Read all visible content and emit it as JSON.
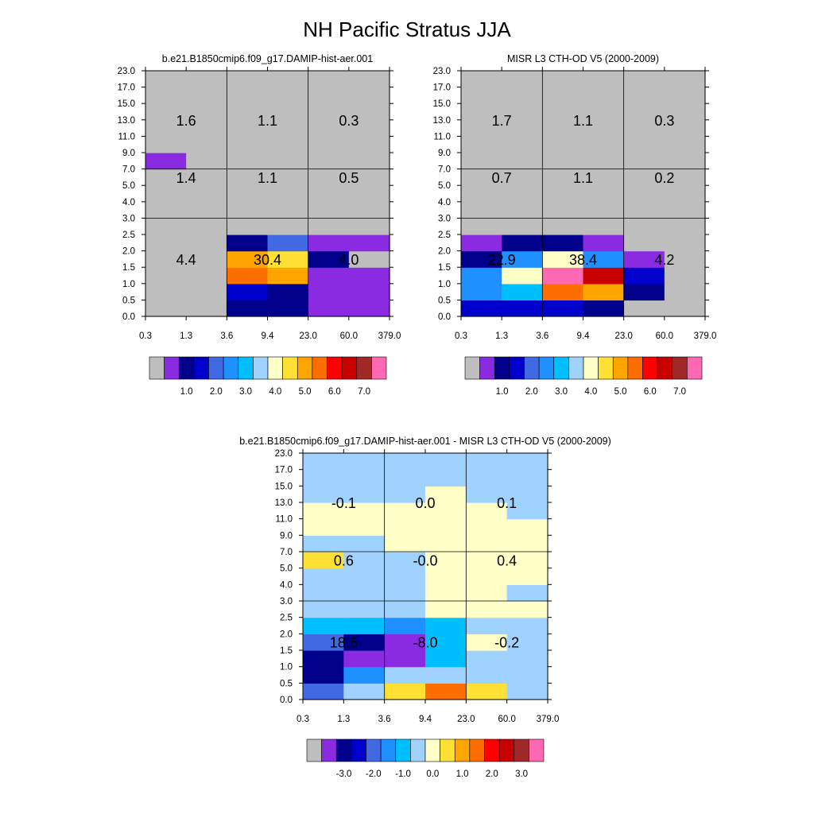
{
  "title": "NH Pacific Stratus JJA",
  "colors": {
    "palette": [
      "#bebebe",
      "#8a2be2",
      "#00008b",
      "#0000cd",
      "#4169e1",
      "#1e90ff",
      "#00bfff",
      "#a0d2ff",
      "#ffffc8",
      "#ffe135",
      "#ffa500",
      "#ff6e00",
      "#ff0000",
      "#c80000",
      "#a02828",
      "#ff69b4"
    ],
    "missing": "#bebebe",
    "grid_line": "#000000"
  },
  "chart_data": [
    {
      "type": "heatmap",
      "title": "b.e21.B1850cmip6.f09_g17.DAMIP-hist-aer.001",
      "x_tick_labels": [
        "0.3",
        "1.3",
        "3.6",
        "9.4",
        "23.0",
        "60.0",
        "379.0"
      ],
      "y_tick_labels": [
        "0.0",
        "0.5",
        "1.0",
        "1.5",
        "2.0",
        "2.5",
        "3.0",
        "4.0",
        "5.0",
        "7.0",
        "9.0",
        "11.0",
        "13.0",
        "15.0",
        "17.0",
        "23.0"
      ],
      "colorbar_labels": [
        "1.0",
        "2.0",
        "3.0",
        "4.0",
        "5.0",
        "6.0",
        "7.0"
      ],
      "cells": [
        [
          0,
          0,
          2,
          2,
          1,
          1
        ],
        [
          0,
          0,
          3,
          2,
          1,
          1
        ],
        [
          0,
          0,
          11,
          10,
          1,
          1
        ],
        [
          0,
          0,
          10,
          9,
          2,
          0
        ],
        [
          0,
          0,
          2,
          4,
          1,
          1
        ],
        [
          0,
          0,
          0,
          0,
          0,
          0
        ],
        [
          0,
          0,
          0,
          0,
          0,
          0
        ],
        [
          0,
          0,
          0,
          0,
          0,
          0
        ],
        [
          0,
          0,
          0,
          0,
          0,
          0
        ],
        [
          1,
          0,
          0,
          0,
          0,
          0
        ],
        [
          0,
          0,
          0,
          0,
          0,
          0
        ],
        [
          0,
          0,
          0,
          0,
          0,
          0
        ],
        [
          0,
          0,
          0,
          0,
          0,
          0
        ],
        [
          0,
          0,
          0,
          0,
          0,
          0
        ],
        [
          0,
          0,
          0,
          0,
          0,
          0
        ]
      ],
      "region_labels": [
        [
          "1.6",
          "1.1",
          "0.3"
        ],
        [
          "1.4",
          "1.1",
          "0.5"
        ],
        [
          "4.4",
          "30.4",
          "4.0"
        ]
      ]
    },
    {
      "type": "heatmap",
      "title": "MISR L3 CTH-OD V5 (2000-2009)",
      "x_tick_labels": [
        "0.3",
        "1.3",
        "3.6",
        "9.4",
        "23.0",
        "60.0",
        "379.0"
      ],
      "y_tick_labels": [
        "0.0",
        "0.5",
        "1.0",
        "1.5",
        "2.0",
        "2.5",
        "3.0",
        "4.0",
        "5.0",
        "7.0",
        "9.0",
        "11.0",
        "13.0",
        "15.0",
        "17.0",
        "23.0"
      ],
      "colorbar_labels": [
        "1.0",
        "2.0",
        "3.0",
        "4.0",
        "5.0",
        "6.0",
        "7.0"
      ],
      "cells": [
        [
          3,
          3,
          3,
          2,
          0,
          0
        ],
        [
          5,
          6,
          11,
          10,
          2,
          0
        ],
        [
          5,
          8,
          15,
          13,
          3,
          0
        ],
        [
          2,
          5,
          8,
          5,
          1,
          0
        ],
        [
          1,
          2,
          2,
          1,
          0,
          0
        ],
        [
          0,
          0,
          0,
          0,
          0,
          0
        ],
        [
          0,
          0,
          0,
          0,
          0,
          0
        ],
        [
          0,
          0,
          0,
          0,
          0,
          0
        ],
        [
          0,
          0,
          0,
          0,
          0,
          0
        ],
        [
          0,
          0,
          0,
          0,
          0,
          0
        ],
        [
          0,
          0,
          0,
          0,
          0,
          0
        ],
        [
          0,
          0,
          0,
          0,
          0,
          0
        ],
        [
          0,
          0,
          0,
          0,
          0,
          0
        ],
        [
          0,
          0,
          0,
          0,
          0,
          0
        ],
        [
          0,
          0,
          0,
          0,
          0,
          0
        ]
      ],
      "region_labels": [
        [
          "1.7",
          "1.1",
          "0.3"
        ],
        [
          "0.7",
          "1.1",
          "0.2"
        ],
        [
          "22.9",
          "38.4",
          "4.2"
        ]
      ]
    },
    {
      "type": "heatmap",
      "title": "b.e21.B1850cmip6.f09_g17.DAMIP-hist-aer.001 - MISR L3 CTH-OD V5 (2000-2009)",
      "x_tick_labels": [
        "0.3",
        "1.3",
        "3.6",
        "9.4",
        "23.0",
        "60.0",
        "379.0"
      ],
      "y_tick_labels": [
        "0.0",
        "0.5",
        "1.0",
        "1.5",
        "2.0",
        "2.5",
        "3.0",
        "4.0",
        "5.0",
        "7.0",
        "9.0",
        "11.0",
        "13.0",
        "15.0",
        "17.0",
        "23.0"
      ],
      "colorbar_labels": [
        "-3.0",
        "-2.0",
        "-1.0",
        "0.0",
        "1.0",
        "2.0",
        "3.0"
      ],
      "cells": [
        [
          4,
          7,
          9,
          11,
          9,
          7
        ],
        [
          2,
          5,
          7,
          7,
          7,
          7
        ],
        [
          2,
          1,
          1,
          6,
          7,
          7
        ],
        [
          4,
          2,
          1,
          6,
          8,
          7
        ],
        [
          6,
          6,
          5,
          6,
          7,
          7
        ],
        [
          7,
          7,
          7,
          8,
          8,
          8
        ],
        [
          7,
          7,
          7,
          8,
          8,
          7
        ],
        [
          7,
          7,
          7,
          8,
          8,
          8
        ],
        [
          9,
          7,
          7,
          8,
          8,
          8
        ],
        [
          7,
          7,
          8,
          8,
          8,
          8
        ],
        [
          8,
          8,
          8,
          8,
          8,
          8
        ],
        [
          8,
          8,
          8,
          8,
          8,
          7
        ],
        [
          7,
          7,
          7,
          8,
          7,
          7
        ],
        [
          7,
          7,
          7,
          7,
          7,
          7
        ],
        [
          7,
          7,
          7,
          7,
          7,
          7
        ]
      ],
      "region_labels": [
        [
          "-0.1",
          "0.0",
          "0.1"
        ],
        [
          "0.6",
          "-0.0",
          "0.4"
        ],
        [
          "18.6",
          "-8.0",
          "-0.2"
        ]
      ]
    }
  ]
}
